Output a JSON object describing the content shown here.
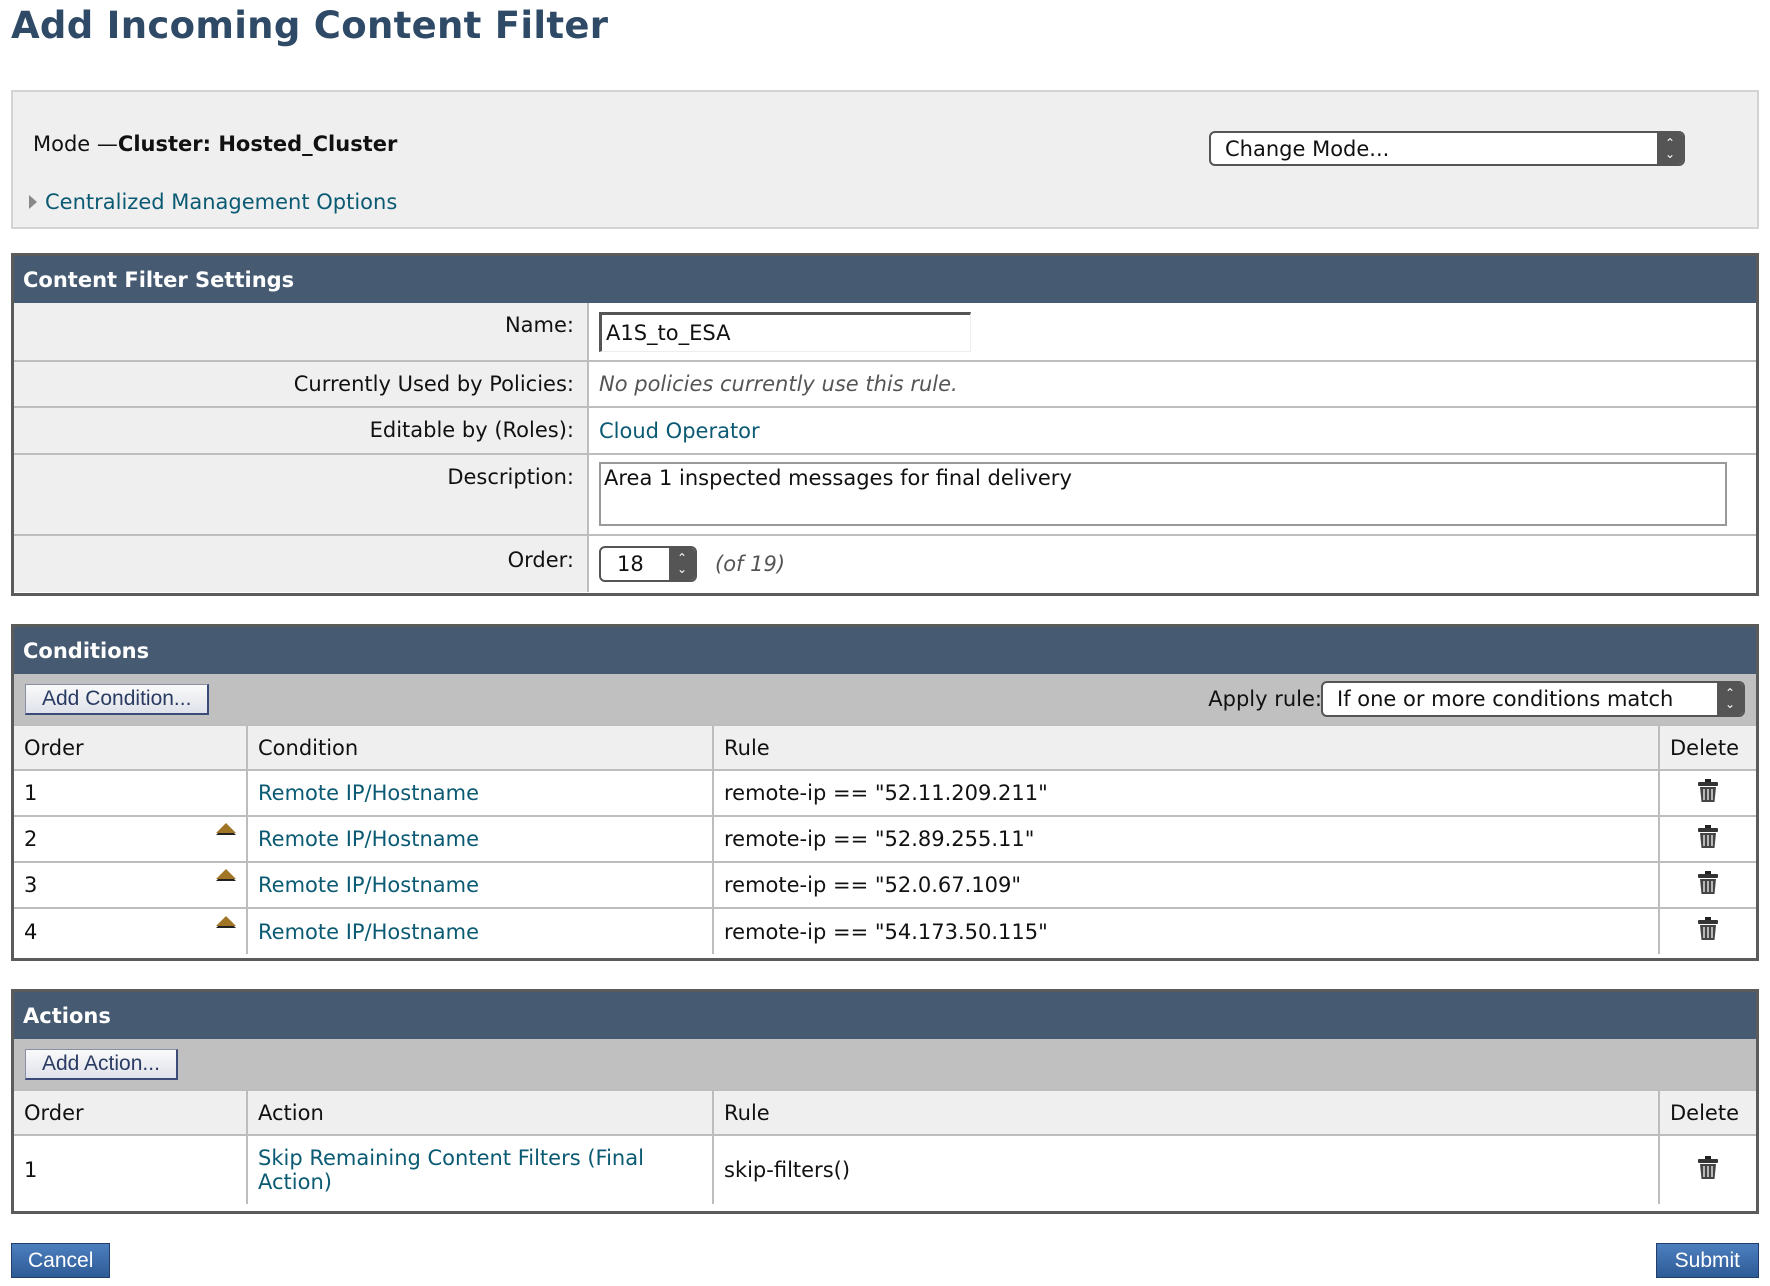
{
  "page_title": "Add Incoming Content Filter",
  "mode": {
    "prefix": "Mode —",
    "value": "Cluster: Hosted_Cluster",
    "change_mode": "Change Mode...",
    "centralized_options": "Centralized Management Options"
  },
  "settings": {
    "title": "Content Filter Settings",
    "name_label": "Name:",
    "name_value": "A1S_to_ESA",
    "policies_label": "Currently Used by Policies:",
    "policies_value": "No policies currently use this rule.",
    "roles_label": "Editable by (Roles):",
    "roles_value": "Cloud Operator",
    "description_label": "Description:",
    "description_value": "Area 1 inspected messages for final delivery",
    "order_label": "Order:",
    "order_value": "18",
    "order_of": "(of 19)"
  },
  "conditions": {
    "title": "Conditions",
    "add_button": "Add Condition...",
    "apply_rule_label": "Apply rule:",
    "apply_rule_value": "If one or more conditions match",
    "columns": [
      "Order",
      "Condition",
      "Rule",
      "Delete"
    ],
    "rows": [
      {
        "order": "1",
        "condition": "Remote IP/Hostname",
        "rule": "remote-ip == \"52.11.209.211\""
      },
      {
        "order": "2",
        "condition": "Remote IP/Hostname",
        "rule": "remote-ip == \"52.89.255.11\""
      },
      {
        "order": "3",
        "condition": "Remote IP/Hostname",
        "rule": "remote-ip == \"52.0.67.109\""
      },
      {
        "order": "4",
        "condition": "Remote IP/Hostname",
        "rule": "remote-ip == \"54.173.50.115\""
      }
    ]
  },
  "actions": {
    "title": "Actions",
    "add_button": "Add Action...",
    "columns": [
      "Order",
      "Action",
      "Rule",
      "Delete"
    ],
    "rows": [
      {
        "order": "1",
        "action": "Skip Remaining Content Filters (Final Action)",
        "rule": "skip-filters()"
      }
    ]
  },
  "footer": {
    "cancel": "Cancel",
    "submit": "Submit"
  }
}
